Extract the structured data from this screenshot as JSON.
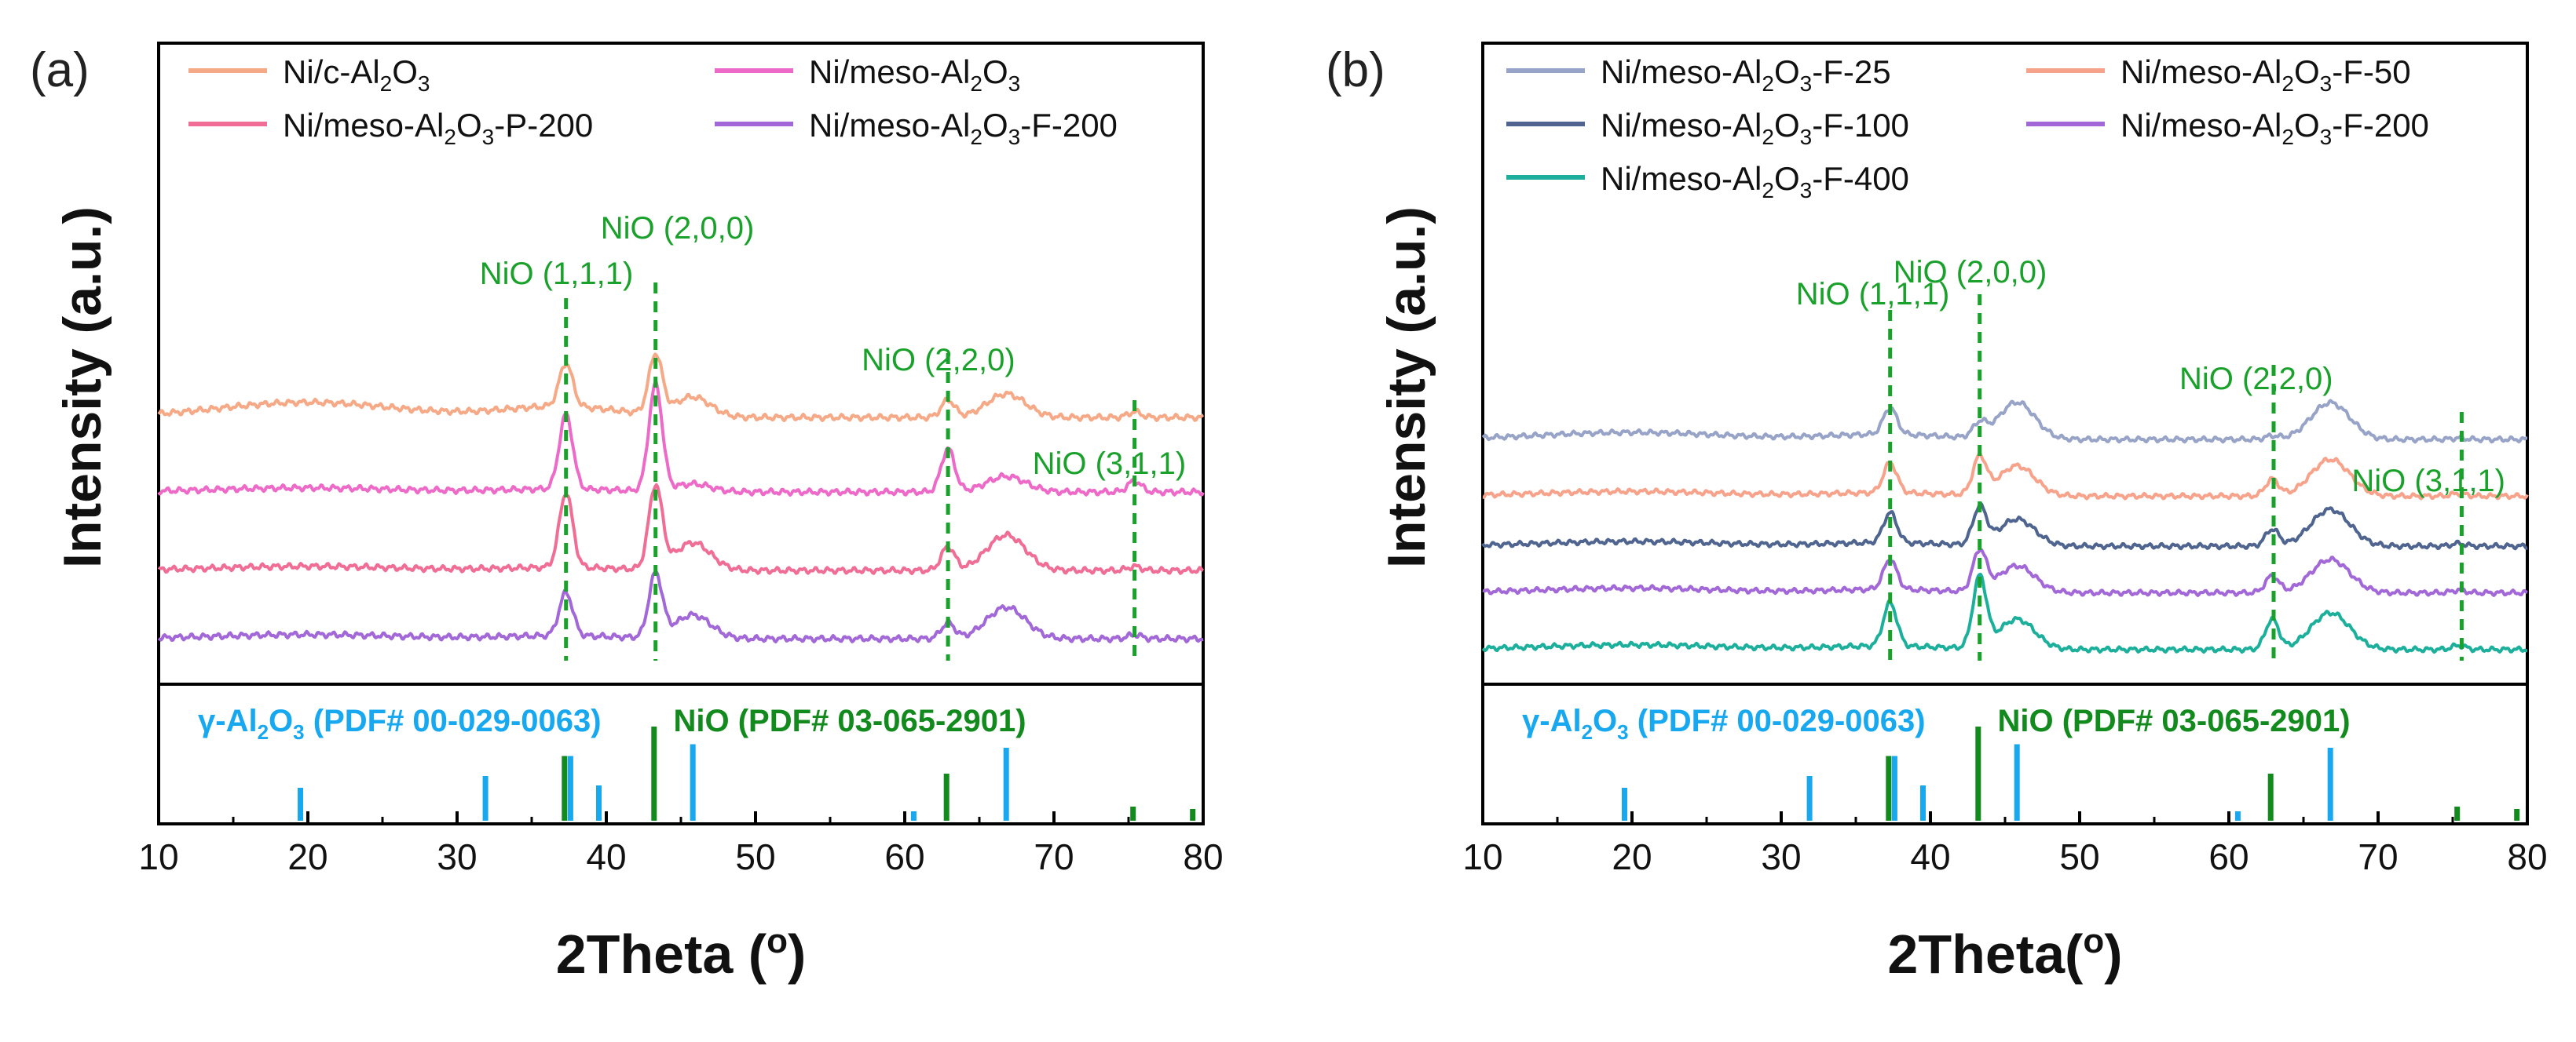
{
  "colors": {
    "ni_c": "#F6A986",
    "ni_meso": "#EE6AC8",
    "ni_p200": "#F06E96",
    "ni_f200": "#A268D8",
    "ni_f25": "#97A3C7",
    "ni_f50": "#F7A38C",
    "ni_f100": "#4F6590",
    "ni_f400": "#1CB09C",
    "alumina_ref": "#17A8F0",
    "nio_ref": "#138A1D",
    "nio_marker": "#1AA12B",
    "frame": "#000000"
  },
  "chart_data": [
    {
      "panel_label": "(a)",
      "type": "line",
      "xlabel_main": "2Theta (",
      "xlabel_degree": "o",
      "xlabel_close": ")",
      "ylabel": "Intensity (a.u.)",
      "xlim": [
        10,
        80
      ],
      "xticks": [
        "10",
        "20",
        "30",
        "40",
        "50",
        "60",
        "70",
        "80"
      ],
      "legend": [
        {
          "prefix": "Ni/c-Al",
          "sub1": "2",
          "mid": "O",
          "sub2": "3",
          "suffix": "",
          "series": "ni_c"
        },
        {
          "prefix": "Ni/meso-Al",
          "sub1": "2",
          "mid": "O",
          "sub2": "3",
          "suffix": "",
          "series": "ni_meso"
        },
        {
          "prefix": "Ni/meso-Al",
          "sub1": "2",
          "mid": "O",
          "sub2": "3",
          "suffix": "-P-200",
          "series": "ni_p200"
        },
        {
          "prefix": "Ni/meso-Al",
          "sub1": "2",
          "mid": "O",
          "sub2": "3",
          "suffix": "-F-200",
          "series": "ni_f200"
        }
      ],
      "series": [
        {
          "key": "ni_c",
          "name": "Ni/c-Al2O3",
          "offset": 3.0,
          "amps": [
            0.55,
            0.75,
            0.25,
            0.22,
            0.3,
            0.07
          ],
          "broad": 0.55
        },
        {
          "key": "ni_meso",
          "name": "Ni/meso-Al2O3",
          "offset": 2.05,
          "amps": [
            0.95,
            1.35,
            0.1,
            0.55,
            0.2,
            0.14
          ],
          "broad": 0.15
        },
        {
          "key": "ni_p200",
          "name": "Ni/meso-Al2O3-P-200",
          "offset": 1.05,
          "amps": [
            0.95,
            1.05,
            0.35,
            0.3,
            0.45,
            0.05
          ],
          "broad": 0.15
        },
        {
          "key": "ni_f200",
          "name": "Ni/meso-Al2O3-F-200",
          "offset": 0.18,
          "amps": [
            0.55,
            0.8,
            0.3,
            0.2,
            0.4,
            0.05
          ],
          "broad": 0.15
        }
      ],
      "nio_markers": [
        {
          "x": 37.3,
          "label": "NiO (1,1,1)"
        },
        {
          "x": 43.3,
          "label": "NiO (2,0,0)"
        },
        {
          "x": 62.9,
          "label": "NiO (2,2,0)"
        },
        {
          "x": 75.4,
          "label": "NiO (3,1,1)"
        }
      ],
      "reference": {
        "alumina_prefix": "γ-Al",
        "alumina_sub1": "2",
        "alumina_mid": "O",
        "alumina_sub2": "3",
        "alumina_suffix": " (PDF# 00-029-0063)",
        "nio_label": "NiO (PDF# 03-065-2901)",
        "alumina_lines": [
          [
            19.5,
            0.28
          ],
          [
            31.9,
            0.38
          ],
          [
            37.6,
            0.55
          ],
          [
            39.5,
            0.3
          ],
          [
            45.8,
            0.65
          ],
          [
            60.6,
            0.08
          ],
          [
            66.8,
            0.62
          ]
        ],
        "nio_lines": [
          [
            37.2,
            0.55
          ],
          [
            43.2,
            0.8
          ],
          [
            62.8,
            0.4
          ],
          [
            75.3,
            0.12
          ],
          [
            79.3,
            0.1
          ]
        ]
      }
    },
    {
      "panel_label": "(b)",
      "type": "line",
      "xlabel_main": "2Theta(",
      "xlabel_degree": "o",
      "xlabel_close": ")",
      "ylabel": "Intensity (a.u.)",
      "xlim": [
        10,
        80
      ],
      "xticks": [
        "10",
        "20",
        "30",
        "40",
        "50",
        "60",
        "70",
        "80"
      ],
      "legend": [
        {
          "prefix": "Ni/meso-Al",
          "sub1": "2",
          "mid": "O",
          "sub2": "3",
          "suffix": "-F-25",
          "series": "ni_f25"
        },
        {
          "prefix": "Ni/meso-Al",
          "sub1": "2",
          "mid": "O",
          "sub2": "3",
          "suffix": "-F-50",
          "series": "ni_f50"
        },
        {
          "prefix": "Ni/meso-Al",
          "sub1": "2",
          "mid": "O",
          "sub2": "3",
          "suffix": "-F-100",
          "series": "ni_f100"
        },
        {
          "prefix": "Ni/meso-Al",
          "sub1": "2",
          "mid": "O",
          "sub2": "3",
          "suffix": "-F-200",
          "series": "ni_f200"
        },
        {
          "prefix": "Ni/meso-Al",
          "sub1": "2",
          "mid": "O",
          "sub2": "3",
          "suffix": "-F-400",
          "series": "ni_f400"
        }
      ],
      "series": [
        {
          "key": "ni_f25",
          "name": "Ni/meso-Al2O3-F-25",
          "offset": 3.2,
          "amps": [
            0.4,
            0.2,
            0.55,
            0.05,
            0.55,
            0.02
          ],
          "broad": 0.3
        },
        {
          "key": "ni_f50",
          "name": "Ni/meso-Al2O3-F-50",
          "offset": 2.35,
          "amps": [
            0.45,
            0.55,
            0.45,
            0.25,
            0.55,
            0.04
          ],
          "broad": 0.2
        },
        {
          "key": "ni_f100",
          "name": "Ni/meso-Al2O3-F-100",
          "offset": 1.6,
          "amps": [
            0.45,
            0.55,
            0.4,
            0.25,
            0.55,
            0.04
          ],
          "broad": 0.2
        },
        {
          "key": "ni_f200",
          "name": "Ni/meso-Al2O3-F-200",
          "offset": 0.9,
          "amps": [
            0.45,
            0.6,
            0.4,
            0.25,
            0.5,
            0.04
          ],
          "broad": 0.2
        },
        {
          "key": "ni_f400",
          "name": "Ni/meso-Al2O3-F-400",
          "offset": 0.05,
          "amps": [
            0.65,
            1.05,
            0.45,
            0.45,
            0.55,
            0.06
          ],
          "broad": 0.2
        }
      ],
      "nio_markers": [
        {
          "x": 37.3,
          "label": "NiO (1,1,1)"
        },
        {
          "x": 43.3,
          "label": "NiO (2,0,0)"
        },
        {
          "x": 63.0,
          "label": "NiO (2,2,0)"
        },
        {
          "x": 75.6,
          "label": "NiO (3,1,1)"
        }
      ],
      "reference": {
        "alumina_prefix": "γ-Al",
        "alumina_sub1": "2",
        "alumina_mid": "O",
        "alumina_sub2": "3",
        "alumina_suffix": " (PDF# 00-029-0063)",
        "nio_label": "NiO (PDF# 03-065-2901)",
        "alumina_lines": [
          [
            19.5,
            0.28
          ],
          [
            31.9,
            0.38
          ],
          [
            37.6,
            0.55
          ],
          [
            39.5,
            0.3
          ],
          [
            45.8,
            0.65
          ],
          [
            60.6,
            0.08
          ],
          [
            66.8,
            0.62
          ]
        ],
        "nio_lines": [
          [
            37.2,
            0.55
          ],
          [
            43.2,
            0.8
          ],
          [
            62.8,
            0.4
          ],
          [
            75.3,
            0.12
          ],
          [
            79.3,
            0.1
          ]
        ]
      }
    }
  ]
}
